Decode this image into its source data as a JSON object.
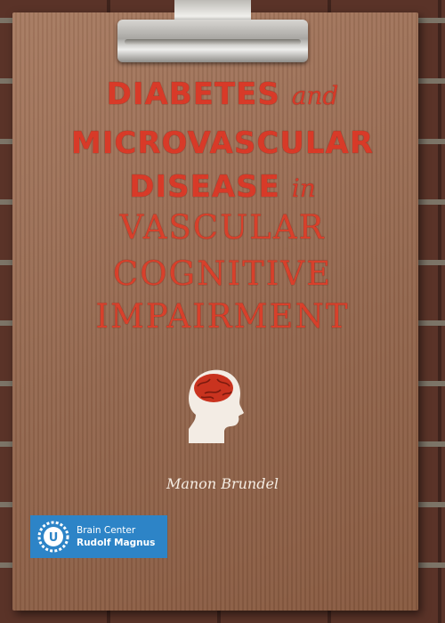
{
  "cover": {
    "title_lines": [
      {
        "main": "DIABETES",
        "connector": "and"
      },
      {
        "main": "MICROVASCULAR"
      },
      {
        "main": "DISEASE",
        "connector": "in"
      },
      {
        "main": "VASCULAR"
      },
      {
        "main": "COGNITIVE"
      },
      {
        "main": "IMPAIRMENT"
      }
    ],
    "author": "Manon Brundel",
    "publisher_badge": {
      "line1": "Brain Center",
      "line2": "Rudolf Magnus",
      "logo_letter": "U",
      "background_color": "#2d84c7"
    },
    "colors": {
      "title_red": "#d83a28",
      "cover_kraft": "#9a6c53",
      "brick": "#4a2a22",
      "head_silhouette": "#f3ece4"
    },
    "icons": [
      "head-brain-icon",
      "university-seal-icon",
      "binder-clip-icon"
    ]
  }
}
